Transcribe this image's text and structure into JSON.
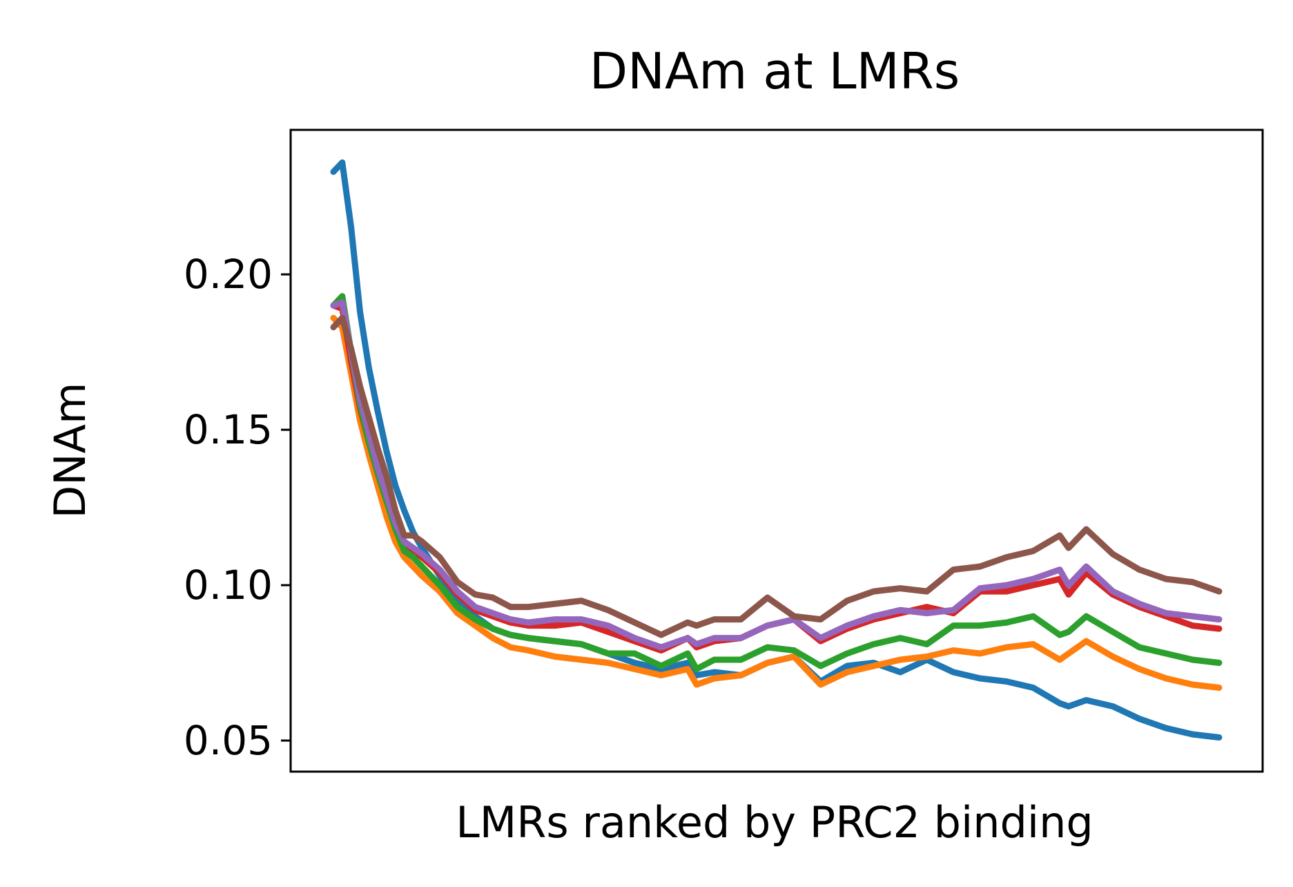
{
  "chart_data": {
    "type": "line",
    "title": "DNAm at LMRs",
    "xlabel": "LMRs ranked by PRC2 binding",
    "ylabel": "DNAm",
    "xlim": [
      0,
      1
    ],
    "ylim": [
      0.04,
      0.2465
    ],
    "yticks": [
      {
        "value": 0.05,
        "label": "0.05"
      },
      {
        "value": 0.1,
        "label": "0.10"
      },
      {
        "value": 0.15,
        "label": "0.15"
      },
      {
        "value": 0.2,
        "label": "0.20"
      }
    ],
    "grid": false,
    "legend": "none",
    "x": [
      0,
      0.01,
      0.02,
      0.03,
      0.04,
      0.05,
      0.06,
      0.07,
      0.08,
      0.09,
      0.1,
      0.12,
      0.14,
      0.16,
      0.18,
      0.2,
      0.22,
      0.25,
      0.28,
      0.31,
      0.34,
      0.37,
      0.4,
      0.41,
      0.43,
      0.46,
      0.49,
      0.52,
      0.55,
      0.58,
      0.61,
      0.64,
      0.67,
      0.7,
      0.73,
      0.76,
      0.79,
      0.82,
      0.83,
      0.85,
      0.88,
      0.91,
      0.94,
      0.97,
      1.0
    ],
    "series": [
      {
        "color": "#1f77b4",
        "values": [
          0.233,
          0.236,
          0.215,
          0.188,
          0.17,
          0.156,
          0.143,
          0.132,
          0.124,
          0.117,
          0.112,
          0.103,
          0.095,
          0.09,
          0.086,
          0.084,
          0.083,
          0.082,
          0.081,
          0.078,
          0.075,
          0.073,
          0.075,
          0.071,
          0.072,
          0.071,
          0.075,
          0.077,
          0.069,
          0.074,
          0.075,
          0.072,
          0.076,
          0.072,
          0.07,
          0.069,
          0.067,
          0.062,
          0.061,
          0.063,
          0.061,
          0.057,
          0.054,
          0.052,
          0.051
        ]
      },
      {
        "color": "#ff7f0e",
        "values": [
          0.186,
          0.183,
          0.168,
          0.153,
          0.142,
          0.132,
          0.122,
          0.114,
          0.109,
          0.106,
          0.103,
          0.098,
          0.091,
          0.087,
          0.083,
          0.08,
          0.079,
          0.077,
          0.076,
          0.075,
          0.073,
          0.071,
          0.073,
          0.068,
          0.07,
          0.071,
          0.075,
          0.077,
          0.068,
          0.072,
          0.074,
          0.076,
          0.077,
          0.079,
          0.078,
          0.08,
          0.081,
          0.076,
          0.078,
          0.082,
          0.077,
          0.073,
          0.07,
          0.068,
          0.067
        ]
      },
      {
        "color": "#d62728",
        "values": [
          0.19,
          0.189,
          0.172,
          0.157,
          0.146,
          0.136,
          0.127,
          0.119,
          0.113,
          0.111,
          0.109,
          0.104,
          0.097,
          0.092,
          0.09,
          0.088,
          0.087,
          0.087,
          0.088,
          0.085,
          0.082,
          0.079,
          0.083,
          0.08,
          0.082,
          0.083,
          0.087,
          0.089,
          0.082,
          0.086,
          0.089,
          0.091,
          0.093,
          0.091,
          0.098,
          0.098,
          0.1,
          0.102,
          0.097,
          0.104,
          0.097,
          0.093,
          0.09,
          0.087,
          0.086
        ]
      },
      {
        "color": "#2ca02c",
        "values": [
          0.19,
          0.193,
          0.175,
          0.158,
          0.146,
          0.136,
          0.127,
          0.118,
          0.111,
          0.109,
          0.106,
          0.1,
          0.093,
          0.089,
          0.086,
          0.084,
          0.083,
          0.082,
          0.081,
          0.078,
          0.078,
          0.074,
          0.078,
          0.073,
          0.076,
          0.076,
          0.08,
          0.079,
          0.074,
          0.078,
          0.081,
          0.083,
          0.081,
          0.087,
          0.087,
          0.088,
          0.09,
          0.084,
          0.085,
          0.09,
          0.085,
          0.08,
          0.078,
          0.076,
          0.075
        ]
      },
      {
        "color": "#9467bd",
        "values": [
          0.19,
          0.191,
          0.175,
          0.16,
          0.149,
          0.138,
          0.129,
          0.12,
          0.114,
          0.112,
          0.11,
          0.105,
          0.098,
          0.093,
          0.091,
          0.089,
          0.088,
          0.089,
          0.089,
          0.087,
          0.083,
          0.08,
          0.083,
          0.081,
          0.083,
          0.083,
          0.087,
          0.089,
          0.083,
          0.087,
          0.09,
          0.092,
          0.091,
          0.092,
          0.099,
          0.1,
          0.102,
          0.105,
          0.1,
          0.106,
          0.098,
          0.094,
          0.091,
          0.09,
          0.089
        ]
      },
      {
        "color": "#8c564b",
        "values": [
          0.183,
          0.186,
          0.176,
          0.164,
          0.154,
          0.144,
          0.135,
          0.124,
          0.116,
          0.116,
          0.114,
          0.109,
          0.101,
          0.097,
          0.096,
          0.093,
          0.093,
          0.094,
          0.095,
          0.092,
          0.088,
          0.084,
          0.088,
          0.087,
          0.089,
          0.089,
          0.096,
          0.09,
          0.089,
          0.095,
          0.098,
          0.099,
          0.098,
          0.105,
          0.106,
          0.109,
          0.111,
          0.116,
          0.112,
          0.118,
          0.11,
          0.105,
          0.102,
          0.101,
          0.098
        ]
      }
    ]
  }
}
